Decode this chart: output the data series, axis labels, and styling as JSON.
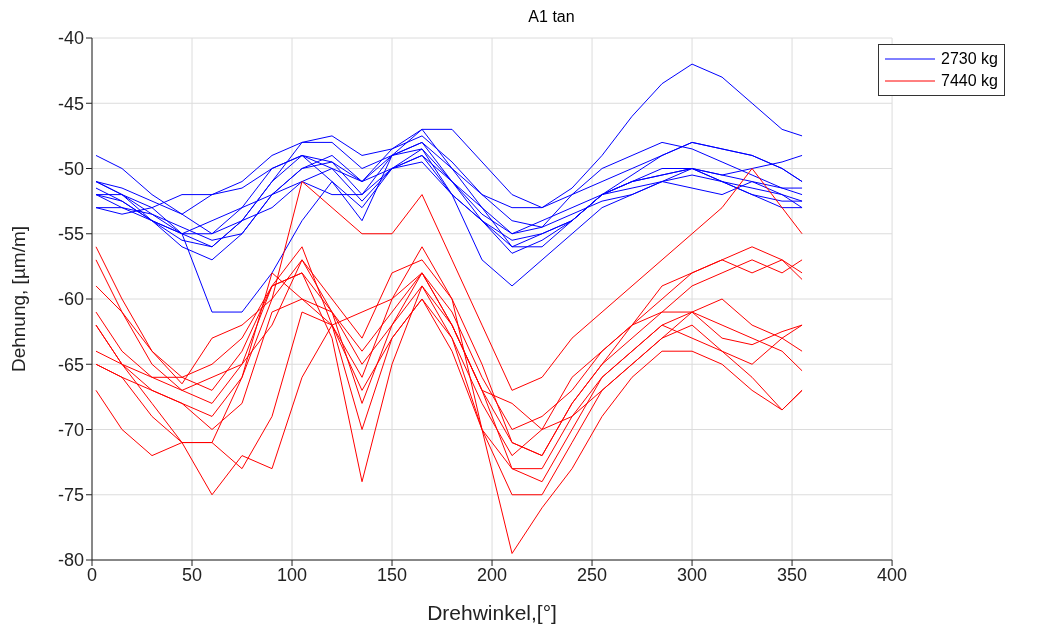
{
  "chart_data": {
    "type": "line",
    "title": "A1 tan",
    "xlabel": "Drehwinkel,[°]",
    "ylabel": "Dehnung, [µm/m]",
    "x": [
      2,
      15,
      30,
      45,
      60,
      75,
      90,
      105,
      120,
      135,
      150,
      165,
      180,
      195,
      210,
      225,
      240,
      255,
      270,
      285,
      300,
      315,
      330,
      345,
      355
    ],
    "series": [
      {
        "name": "2730 kg",
        "color": "#0000ff",
        "values": [
          -49,
          -50,
          -52,
          -53.5,
          -52,
          -51,
          -49,
          -48,
          -47.5,
          -49,
          -48.5,
          -47,
          -47,
          -49.5,
          -52,
          -53,
          -51.5,
          -49,
          -46,
          -43.5,
          -42,
          -43,
          -45,
          -47,
          -47.5
        ]
      },
      {
        "color": "#0000ff",
        "values": [
          -51,
          -52,
          -53,
          -55,
          -61,
          -61,
          -58,
          -54,
          -51,
          -53,
          -50,
          -49,
          -52,
          -57,
          -59,
          -57,
          -55,
          -53,
          -52,
          -51,
          -51.5,
          -52,
          -51,
          -52,
          -53
        ]
      },
      {
        "color": "#0000ff",
        "values": [
          -51,
          -52,
          -54,
          -55,
          -56,
          -54,
          -51,
          -48,
          -48,
          -50,
          -49,
          -48,
          -50,
          -53,
          -55,
          -54,
          -53,
          -52,
          -50.5,
          -49,
          -48,
          -48.5,
          -49,
          -50,
          -51
        ]
      },
      {
        "color": "#0000ff",
        "values": [
          -52,
          -53,
          -54,
          -56,
          -57,
          -55,
          -52,
          -50,
          -49,
          -51,
          -50,
          -49,
          -51,
          -53,
          -56,
          -55,
          -54,
          -52,
          -51,
          -50,
          -50,
          -50.5,
          -50,
          -49.5,
          -49
        ]
      },
      {
        "color": "#0000ff",
        "values": [
          -53,
          -53,
          -53.5,
          -55,
          -55,
          -53,
          -50,
          -49,
          -51,
          -54,
          -49,
          -48.5,
          -52,
          -54,
          -56,
          -56,
          -54,
          -52,
          -51,
          -50.5,
          -50,
          -51,
          -52,
          -53,
          -53
        ]
      },
      {
        "color": "#0000ff",
        "values": [
          -51.5,
          -52.5,
          -54,
          -55.5,
          -56,
          -54,
          -51,
          -49,
          -50,
          -51,
          -49,
          -48,
          -51,
          -53.5,
          -55,
          -54.5,
          -53.5,
          -52.5,
          -52,
          -51,
          -50,
          -51,
          -51.5,
          -52,
          -52.5
        ]
      },
      {
        "color": "#0000ff",
        "values": [
          -52,
          -52.5,
          -54,
          -55,
          -54,
          -53,
          -52,
          -51,
          -52,
          -52,
          -50,
          -49.5,
          -52,
          -54,
          -55.5,
          -55,
          -54,
          -52,
          -51.5,
          -51,
          -50.5,
          -51,
          -52,
          -52.5,
          -52.5
        ]
      },
      {
        "color": "#0000ff",
        "values": [
          -53,
          -53.5,
          -53,
          -52,
          -52,
          -51.5,
          -50,
          -49,
          -49.5,
          -52,
          -49,
          -47,
          -50,
          -52,
          -53,
          -53,
          -52,
          -51,
          -50,
          -49,
          -48,
          -48.5,
          -49,
          -50,
          -51
        ]
      },
      {
        "color": "#0000ff",
        "values": [
          -52,
          -52,
          -53.5,
          -54.5,
          -55.5,
          -55,
          -52,
          -50,
          -49.5,
          -51,
          -48.5,
          -47.5,
          -49.5,
          -52,
          -54,
          -54.5,
          -52,
          -50,
          -49,
          -48,
          -48.5,
          -49.5,
          -50.5,
          -51.5,
          -52
        ]
      },
      {
        "color": "#0000ff",
        "values": [
          -51,
          -51.5,
          -52.5,
          -53.5,
          -55,
          -54,
          -53,
          -51,
          -50,
          -52.5,
          -50,
          -48.5,
          -51,
          -54,
          -56.5,
          -55.5,
          -54,
          -52,
          -51,
          -50.5,
          -50,
          -50.5,
          -51,
          -51.5,
          -51.5
        ]
      },
      {
        "name": "7440 kg",
        "color": "#ff0000",
        "values": [
          -61,
          -64,
          -66,
          -67,
          -66,
          -65,
          -62,
          -57,
          -60,
          -63,
          -58,
          -57,
          -60,
          -70,
          -79.5,
          -76,
          -73,
          -69,
          -66,
          -64,
          -64,
          -65,
          -67,
          -68.5,
          -67
        ]
      },
      {
        "color": "#ff0000",
        "values": [
          -59,
          -61,
          -64,
          -66.5,
          -63,
          -62,
          -60,
          -51,
          -53,
          -55,
          -55,
          -52,
          -57,
          -62,
          -67,
          -66,
          -63,
          -61,
          -59,
          -57,
          -55,
          -53,
          -50,
          -53,
          -55
        ]
      },
      {
        "color": "#ff0000",
        "values": [
          -62,
          -65,
          -68,
          -71,
          -75,
          -72,
          -73,
          -66,
          -62,
          -70,
          -63,
          -60,
          -63,
          -68,
          -72,
          -70,
          -66,
          -64,
          -62,
          -60,
          -58,
          -57,
          -56,
          -57,
          -58.5
        ]
      },
      {
        "color": "#ff0000",
        "values": [
          -65,
          -66,
          -69,
          -71,
          -71,
          -66,
          -60,
          -57,
          -61,
          -65,
          -62,
          -59,
          -62,
          -67,
          -71,
          -72,
          -68,
          -65,
          -63,
          -61,
          -59,
          -58,
          -57,
          -58,
          -57
        ]
      },
      {
        "color": "#ff0000",
        "values": [
          -56,
          -60,
          -64,
          -66,
          -67,
          -64,
          -59,
          -56,
          -62,
          -67,
          -63,
          -60,
          -64,
          -70,
          -73,
          -74,
          -70,
          -66,
          -64,
          -62,
          -61,
          -62,
          -63,
          -64,
          -65.5
        ]
      },
      {
        "color": "#ff0000",
        "values": [
          -57,
          -61,
          -65,
          -67,
          -68,
          -65,
          -59,
          -58,
          -63,
          -74,
          -65,
          -59,
          -63,
          -70,
          -75,
          -75,
          -71,
          -67,
          -65,
          -63,
          -61,
          -60,
          -62,
          -63,
          -62
        ]
      },
      {
        "color": "#ff0000",
        "values": [
          -62,
          -65,
          -66,
          -66,
          -65,
          -63,
          -59,
          -58,
          -61,
          -64,
          -61,
          -58,
          -61,
          -66,
          -70,
          -69,
          -67,
          -64,
          -62,
          -61,
          -61,
          -63,
          -63.5,
          -62.5,
          -62
        ]
      },
      {
        "color": "#ff0000",
        "values": [
          -64,
          -65,
          -67,
          -68,
          -69,
          -66,
          -58,
          -60,
          -62,
          -66,
          -60,
          -56,
          -60,
          -65,
          -71,
          -72,
          -68,
          -65,
          -62,
          -59,
          -58,
          -57,
          -58,
          -57,
          -58
        ]
      },
      {
        "color": "#ff0000",
        "values": [
          -65,
          -66,
          -67,
          -68,
          -70,
          -68,
          -61,
          -60,
          -61,
          -68,
          -62,
          -58,
          -62,
          -67,
          -73,
          -73,
          -69,
          -66,
          -64,
          -62,
          -63,
          -64,
          -65,
          -63,
          -64
        ]
      },
      {
        "color": "#ff0000",
        "values": [
          -67,
          -70,
          -72,
          -71,
          -71,
          -73,
          -69,
          -61,
          -62,
          -61,
          -60,
          -58,
          -62,
          -67,
          -68,
          -70,
          -69,
          -67,
          -65,
          -63,
          -62,
          -64,
          -66,
          -68.5,
          -67
        ]
      }
    ],
    "xlim": [
      0,
      400
    ],
    "xticks": [
      0,
      50,
      100,
      150,
      200,
      250,
      300,
      350,
      400
    ],
    "ylim": [
      -80,
      -40
    ],
    "yticks": [
      -80,
      -75,
      -70,
      -65,
      -60,
      -55,
      -50,
      -45,
      -40
    ],
    "grid": true,
    "legend": "top right",
    "marker": "none",
    "line_style": "solid"
  }
}
